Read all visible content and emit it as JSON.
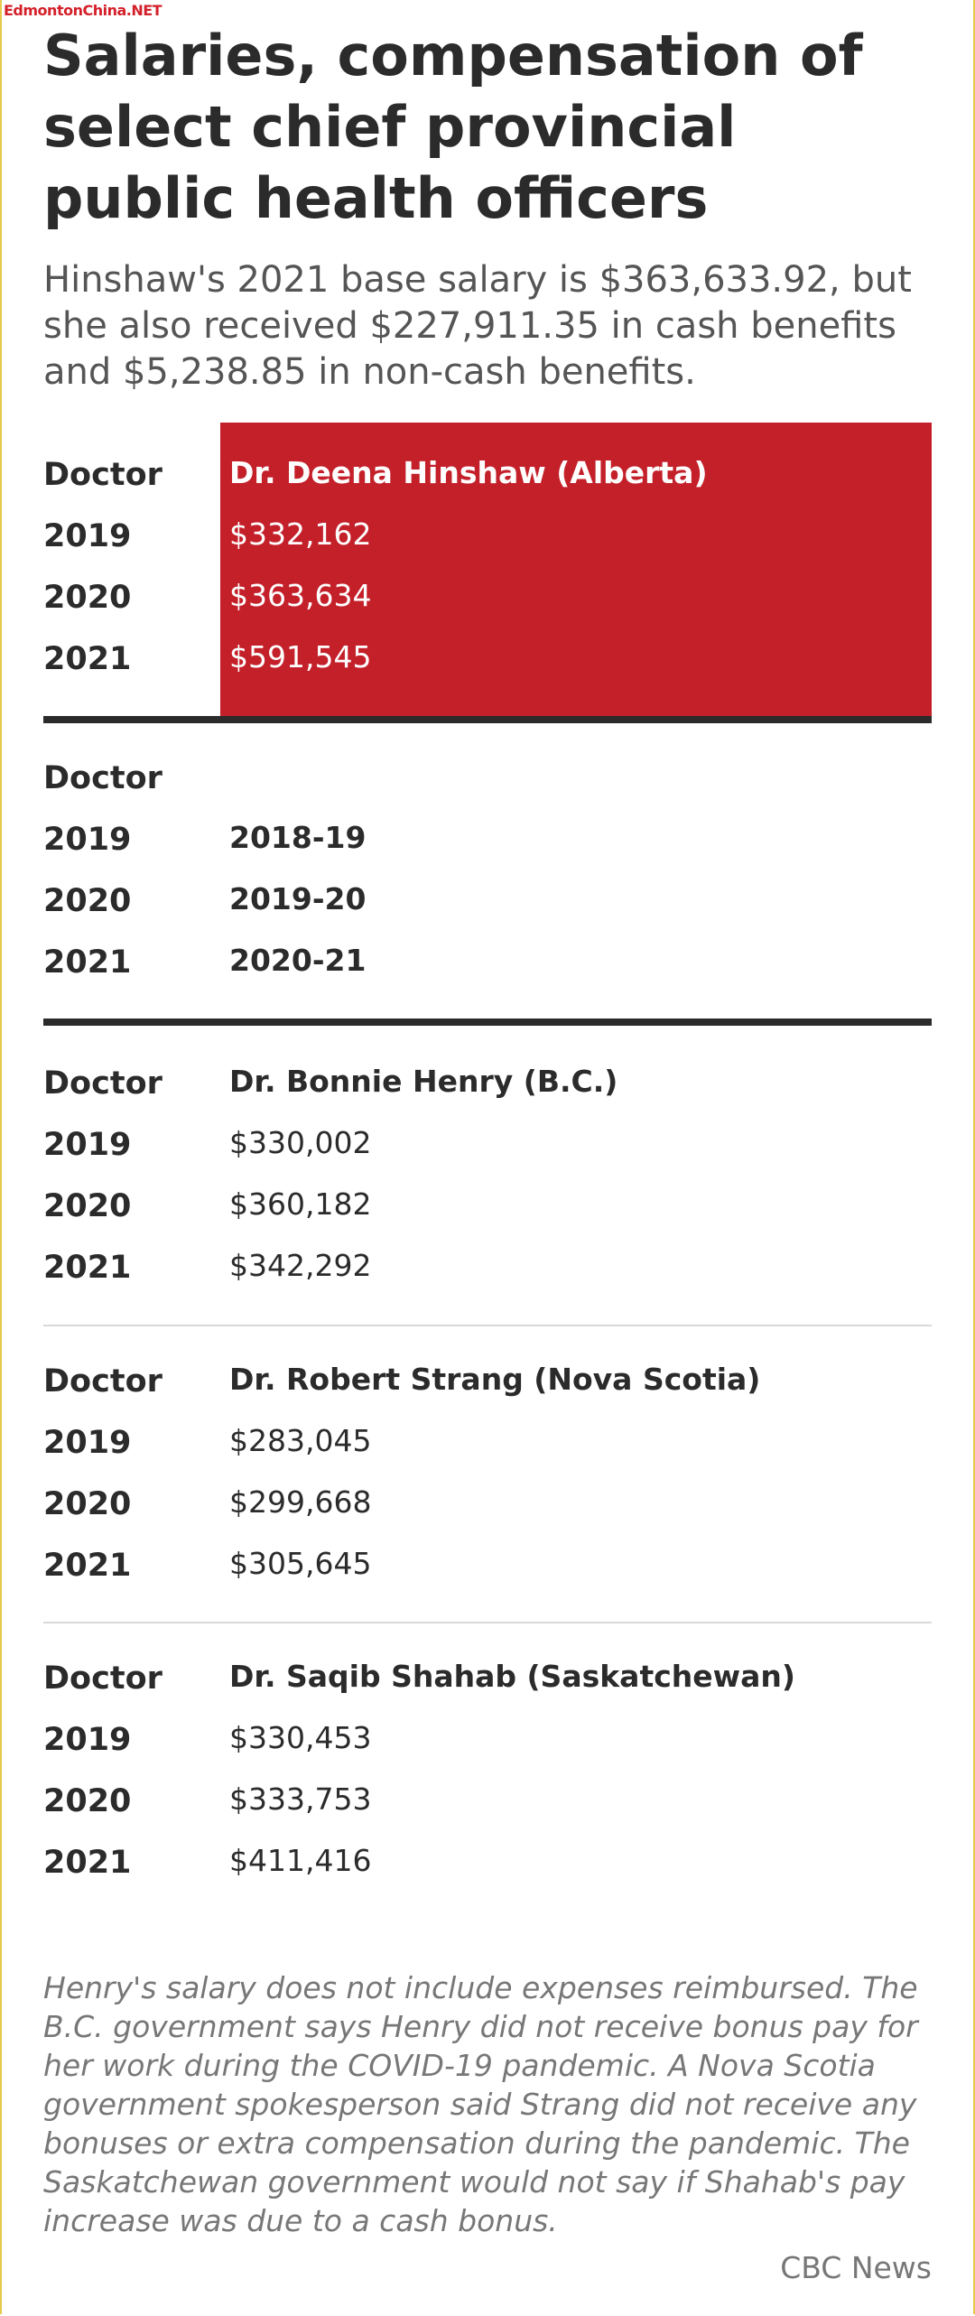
{
  "watermark": "EdmontonChina.NET",
  "title": "Salaries, compensation of select chief provincial public health officers",
  "subtitle": "Hinshaw's 2021 base salary is $363,633.92, but she also received $227,911.35 in cash benefits and $5,238.85 in non-cash benefits.",
  "labels": {
    "doctor": "Doctor",
    "y2019": "2019",
    "y2020": "2020",
    "y2021": "2021"
  },
  "colors": {
    "highlight": "#c4202a",
    "rule": "#2b2b2b",
    "divider": "#d9d9d9"
  },
  "tables": [
    {
      "doctor": "Dr. Deena Hinshaw (Alberta)",
      "v2019": "$332,162",
      "v2020": "$363,634",
      "v2021": "$591,545"
    },
    {
      "doctor": "",
      "v2019": "2018-19",
      "v2020": "2019-20",
      "v2021": "2020-21"
    },
    {
      "doctor": "Dr. Bonnie Henry (B.C.)",
      "v2019": "$330,002",
      "v2020": "$360,182",
      "v2021": "$342,292"
    },
    {
      "doctor": "Dr. Robert Strang (Nova Scotia)",
      "v2019": "$283,045",
      "v2020": "$299,668",
      "v2021": "$305,645"
    },
    {
      "doctor": "Dr. Saqib Shahab (Saskatchewan)",
      "v2019": "$330,453",
      "v2020": "$333,753",
      "v2021": "$411,416"
    }
  ],
  "note": "Henry's salary does not include expenses reimbursed. The B.C. government says Henry did not receive bonus pay for her work during the COVID-19 pandemic. A Nova Scotia government spokesperson said Strang did not receive any bonuses or extra compensation during the pandemic. The Saskatchewan government would not say if Shahab's pay increase was due to a cash bonus.",
  "source": "CBC News"
}
